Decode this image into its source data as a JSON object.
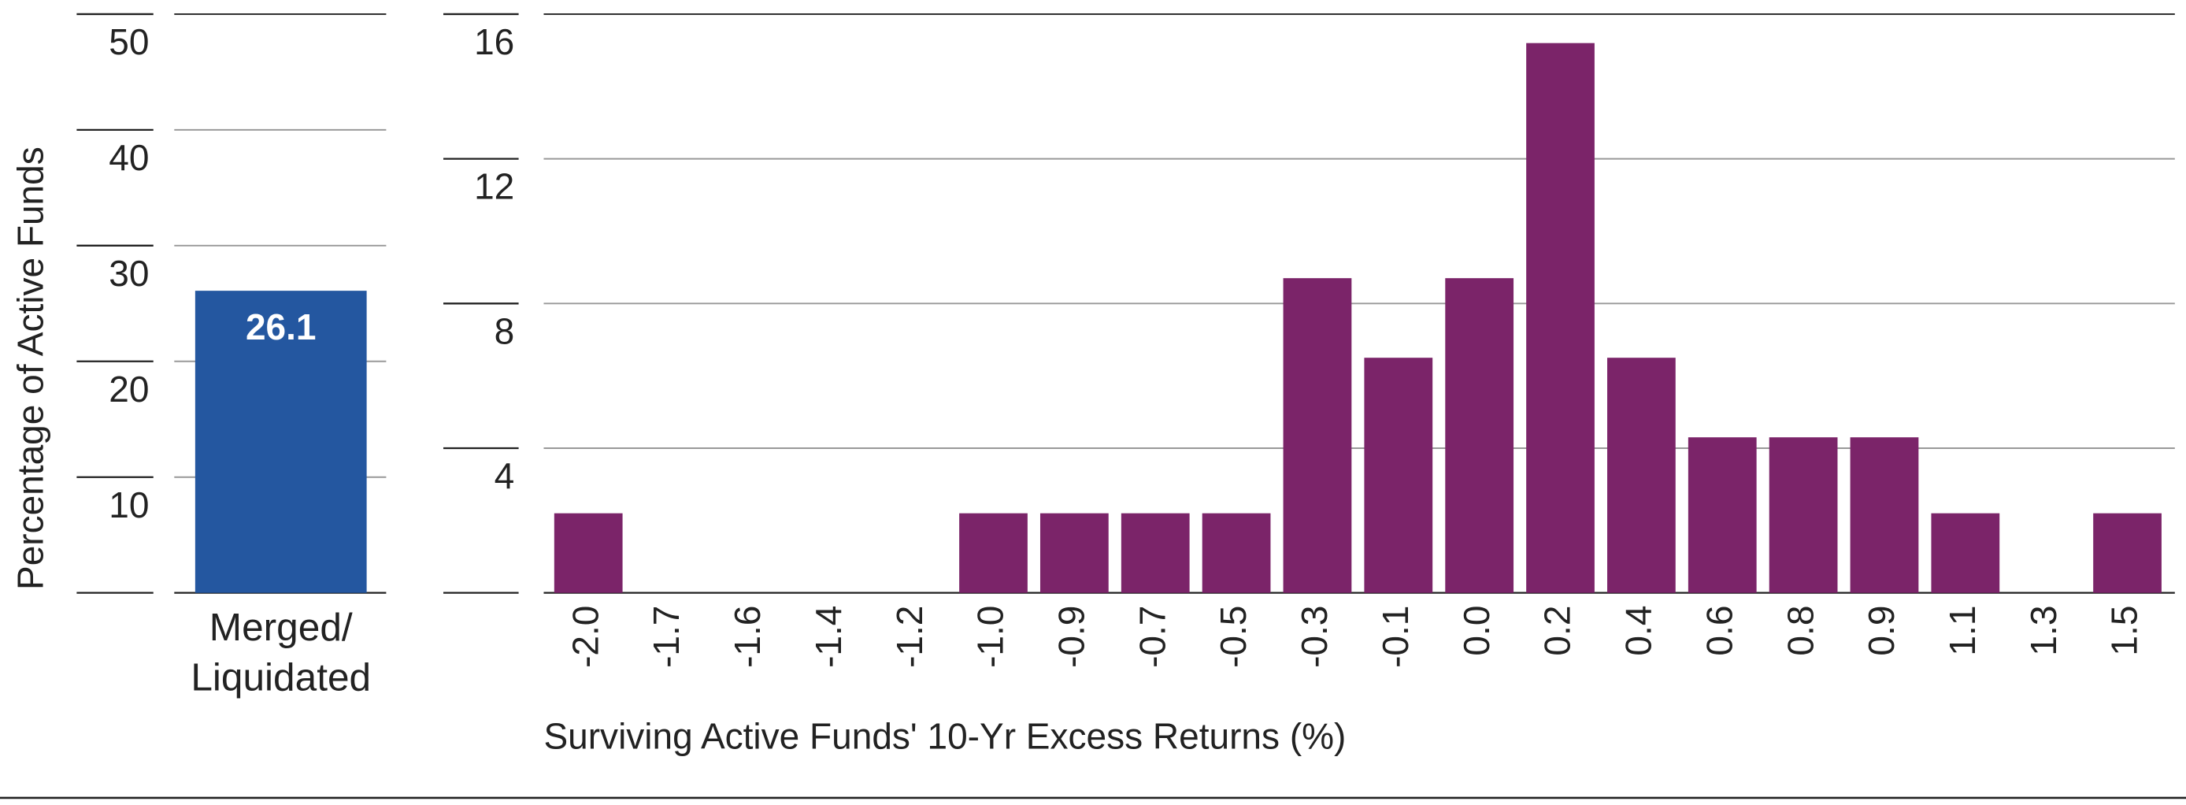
{
  "chart_data": [
    {
      "type": "bar",
      "y_label": "Percentage of Active Funds",
      "categories": [
        "Merged/\nLiquidated"
      ],
      "values": [
        26.1
      ],
      "color": "#2457a0",
      "ylim": [
        0,
        50
      ],
      "yticks": [
        10,
        20,
        30,
        40,
        50
      ],
      "grid": true
    },
    {
      "type": "bar",
      "x_label": "Surviving Active Funds' 10-Yr Excess Returns (%)",
      "categories": [
        "-2.0",
        "-1.7",
        "-1.6",
        "-1.4",
        "-1.2",
        "-1.0",
        "-0.9",
        "-0.7",
        "-0.5",
        "-0.3",
        "-0.1",
        "0.0",
        "0.2",
        "0.4",
        "0.6",
        "0.8",
        "0.9",
        "1.1",
        "1.3",
        "1.5"
      ],
      "values": [
        2.2,
        0,
        0,
        0,
        0,
        2.2,
        2.2,
        2.2,
        2.2,
        8.7,
        6.5,
        8.7,
        15.2,
        6.5,
        4.3,
        4.3,
        4.3,
        2.2,
        0,
        2.2
      ],
      "color": "#7b2469",
      "ylim": [
        0,
        16
      ],
      "yticks": [
        4,
        8,
        12,
        16
      ],
      "grid": true
    }
  ]
}
